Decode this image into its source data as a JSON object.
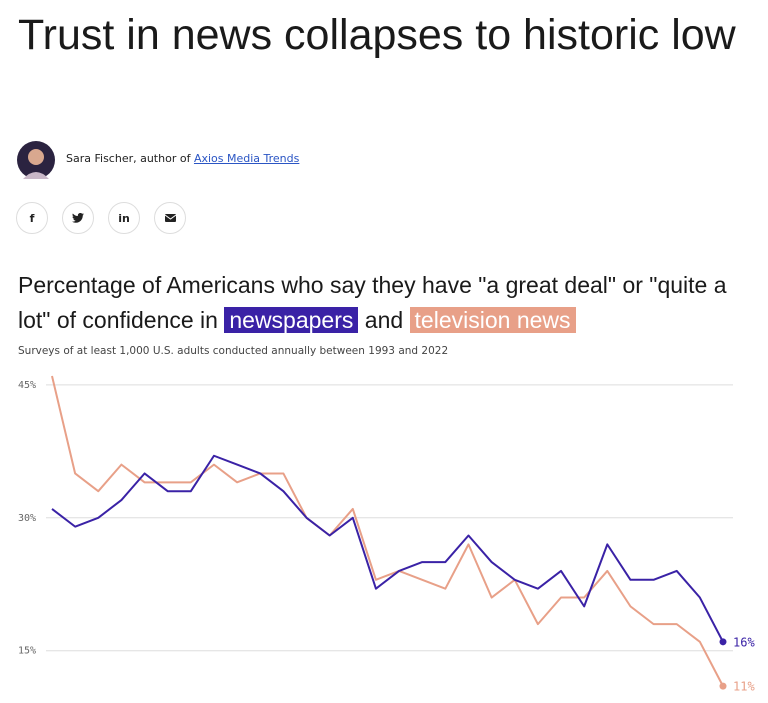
{
  "header": {
    "title": "Trust in news collapses to historic low",
    "byline": "Sara Fischer, author of",
    "byline_link": "Axios Media Trends",
    "share_buttons": [
      "f",
      "in"
    ]
  },
  "chart_data": {
    "type": "line",
    "title_start": "Percentage of Americans who say they have \"a great deal\" or \"quite a lot\" of confidence in",
    "title_join": "and",
    "subtitle": "Surveys of at least 1,000 U.S. adults conducted annually between 1993 and 2022",
    "categories": [
      null,
      null,
      null,
      null,
      null,
      null,
      null,
      null,
      null,
      null,
      null,
      null,
      null,
      null,
      null,
      null,
      null,
      null,
      null,
      null,
      null,
      null,
      null,
      null,
      null,
      null,
      null,
      null,
      null,
      null
    ],
    "series": [
      {
        "name": "newspapers",
        "color": "#3a22a6",
        "values": [
          31,
          29,
          30,
          32,
          35,
          33,
          33,
          37,
          36,
          35,
          33,
          30,
          28,
          30,
          22,
          24,
          25,
          25,
          28,
          25,
          23,
          22,
          24,
          20,
          27,
          23,
          23,
          24,
          21,
          16
        ],
        "value_labels": [
          null,
          null,
          null,
          null,
          null,
          null,
          null,
          null,
          null,
          null,
          null,
          null,
          null,
          null,
          null,
          null,
          null,
          null,
          null,
          null,
          null,
          null,
          null,
          null,
          null,
          null,
          null,
          null,
          null,
          "16%"
        ]
      },
      {
        "name": "television news",
        "color": "#e8a088",
        "values": [
          46,
          35,
          33,
          36,
          34,
          34,
          34,
          36,
          34,
          35,
          35,
          30,
          28,
          31,
          23,
          24,
          23,
          22,
          27,
          21,
          23,
          18,
          21,
          21,
          24,
          20,
          18,
          18,
          16,
          11
        ],
        "value_labels": [
          null,
          null,
          null,
          null,
          null,
          null,
          null,
          null,
          null,
          null,
          null,
          null,
          null,
          null,
          null,
          null,
          null,
          null,
          null,
          null,
          null,
          null,
          null,
          null,
          null,
          null,
          null,
          null,
          null,
          "11%"
        ]
      }
    ],
    "ylim": [
      10,
      46
    ],
    "yticks": [
      {
        "value": 15,
        "label": "15%"
      },
      {
        "value": 30,
        "label": "30%"
      },
      {
        "value": 45,
        "label": "45%"
      }
    ],
    "grid": true
  }
}
